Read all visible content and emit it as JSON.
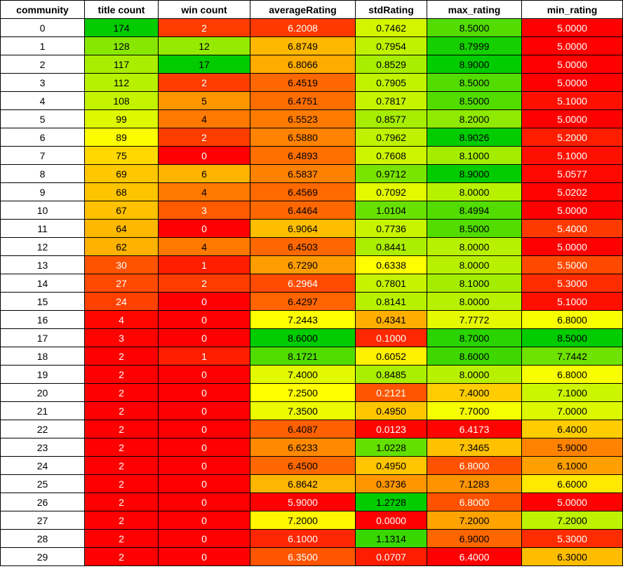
{
  "table": {
    "headers": [
      "community",
      "title count",
      "win count",
      "averageRating",
      "stdRating",
      "max_rating",
      "min_rating"
    ],
    "rows": [
      [
        "0",
        "174",
        "2",
        "6.2008",
        "0.7462",
        "8.5000",
        "5.0000"
      ],
      [
        "1",
        "128",
        "12",
        "6.8749",
        "0.7954",
        "8.7999",
        "5.0000"
      ],
      [
        "2",
        "117",
        "17",
        "6.8066",
        "0.8529",
        "8.9000",
        "5.0000"
      ],
      [
        "3",
        "112",
        "2",
        "6.4519",
        "0.7905",
        "8.5000",
        "5.0000"
      ],
      [
        "4",
        "108",
        "5",
        "6.4751",
        "0.7817",
        "8.5000",
        "5.1000"
      ],
      [
        "5",
        "99",
        "4",
        "6.5523",
        "0.8577",
        "8.2000",
        "5.0000"
      ],
      [
        "6",
        "89",
        "2",
        "6.5880",
        "0.7962",
        "8.9026",
        "5.2000"
      ],
      [
        "7",
        "75",
        "0",
        "6.4893",
        "0.7608",
        "8.1000",
        "5.1000"
      ],
      [
        "8",
        "69",
        "6",
        "6.5837",
        "0.9712",
        "8.9000",
        "5.0577"
      ],
      [
        "9",
        "68",
        "4",
        "6.4569",
        "0.7092",
        "8.0000",
        "5.0202"
      ],
      [
        "10",
        "67",
        "3",
        "6.4464",
        "1.0104",
        "8.4994",
        "5.0000"
      ],
      [
        "11",
        "64",
        "0",
        "6.9064",
        "0.7736",
        "8.5000",
        "5.4000"
      ],
      [
        "12",
        "62",
        "4",
        "6.4503",
        "0.8441",
        "8.0000",
        "5.0000"
      ],
      [
        "13",
        "30",
        "1",
        "6.7290",
        "0.6338",
        "8.0000",
        "5.5000"
      ],
      [
        "14",
        "27",
        "2",
        "6.2964",
        "0.7801",
        "8.1000",
        "5.3000"
      ],
      [
        "15",
        "24",
        "0",
        "6.4297",
        "0.8141",
        "8.0000",
        "5.1000"
      ],
      [
        "16",
        "4",
        "0",
        "7.2443",
        "0.4341",
        "7.7772",
        "6.8000"
      ],
      [
        "17",
        "3",
        "0",
        "8.6000",
        "0.1000",
        "8.7000",
        "8.5000"
      ],
      [
        "18",
        "2",
        "1",
        "8.1721",
        "0.6052",
        "8.6000",
        "7.7442"
      ],
      [
        "19",
        "2",
        "0",
        "7.4000",
        "0.8485",
        "8.0000",
        "6.8000"
      ],
      [
        "20",
        "2",
        "0",
        "7.2500",
        "0.2121",
        "7.4000",
        "7.1000"
      ],
      [
        "21",
        "2",
        "0",
        "7.3500",
        "0.4950",
        "7.7000",
        "7.0000"
      ],
      [
        "22",
        "2",
        "0",
        "6.4087",
        "0.0123",
        "6.4173",
        "6.4000"
      ],
      [
        "23",
        "2",
        "0",
        "6.6233",
        "1.0228",
        "7.3465",
        "5.9000"
      ],
      [
        "24",
        "2",
        "0",
        "6.4500",
        "0.4950",
        "6.8000",
        "6.1000"
      ],
      [
        "25",
        "2",
        "0",
        "6.8642",
        "0.3736",
        "7.1283",
        "6.6000"
      ],
      [
        "26",
        "2",
        "0",
        "5.9000",
        "1.2728",
        "6.8000",
        "5.0000"
      ],
      [
        "27",
        "2",
        "0",
        "7.2000",
        "0.0000",
        "7.2000",
        "7.2000"
      ],
      [
        "28",
        "2",
        "0",
        "6.1000",
        "1.1314",
        "6.9000",
        "5.3000"
      ],
      [
        "29",
        "2",
        "0",
        "6.3500",
        "0.0707",
        "6.4000",
        "6.3000"
      ]
    ],
    "column_widths": [
      120,
      105,
      131,
      150,
      102,
      135,
      144
    ],
    "color_scale": {
      "low": "#ff0000",
      "mid": "#ffff00",
      "high": "#00cc00",
      "columns": [
        1,
        2,
        3,
        4,
        5,
        6
      ]
    }
  }
}
